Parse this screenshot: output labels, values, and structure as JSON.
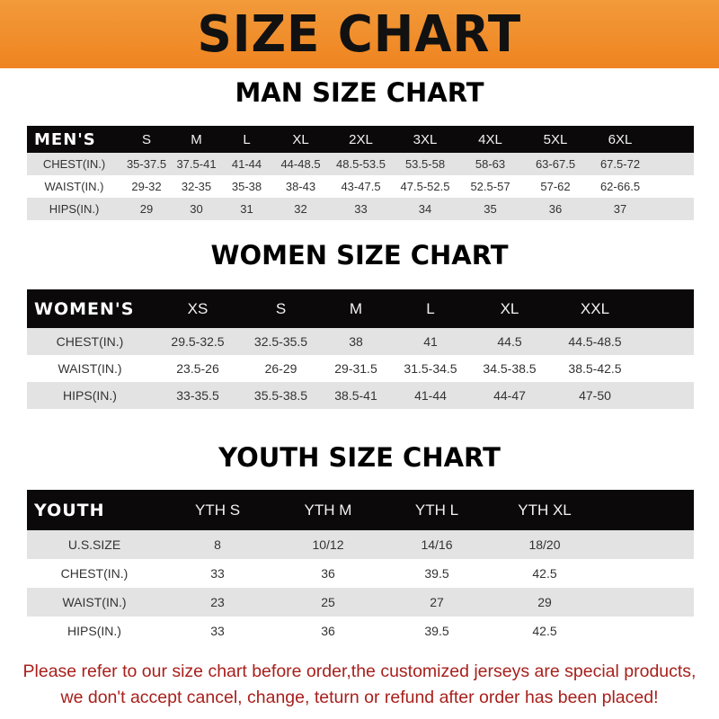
{
  "banner_title": "SIZE CHART",
  "men": {
    "title": "MAN SIZE CHART",
    "header": [
      "MEN'S",
      "S",
      "M",
      "L",
      "XL",
      "2XL",
      "3XL",
      "4XL",
      "5XL",
      "6XL"
    ],
    "rows": [
      [
        "CHEST(IN.)",
        "35-37.5",
        "37.5-41",
        "41-44",
        "44-48.5",
        "48.5-53.5",
        "53.5-58",
        "58-63",
        "63-67.5",
        "67.5-72"
      ],
      [
        "WAIST(IN.)",
        "29-32",
        "32-35",
        "35-38",
        "38-43",
        "43-47.5",
        "47.5-52.5",
        "52.5-57",
        "57-62",
        "62-66.5"
      ],
      [
        "HIPS(IN.)",
        "29",
        "30",
        "31",
        "32",
        "33",
        "34",
        "35",
        "36",
        "37"
      ]
    ]
  },
  "women": {
    "title": "WOMEN SIZE CHART",
    "header": [
      "WOMEN'S",
      "XS",
      "S",
      "M",
      "L",
      "XL",
      "XXL"
    ],
    "rows": [
      [
        "CHEST(IN.)",
        "29.5-32.5",
        "32.5-35.5",
        "38",
        "41",
        "44.5",
        "44.5-48.5"
      ],
      [
        "WAIST(IN.)",
        "23.5-26",
        "26-29",
        "29-31.5",
        "31.5-34.5",
        "34.5-38.5",
        "38.5-42.5"
      ],
      [
        "HIPS(IN.)",
        "33-35.5",
        "35.5-38.5",
        "38.5-41",
        "41-44",
        "44-47",
        "47-50"
      ]
    ]
  },
  "youth": {
    "title": "YOUTH SIZE CHART",
    "header": [
      "YOUTH",
      "YTH S",
      "YTH M",
      "YTH L",
      "YTH XL"
    ],
    "rows": [
      [
        "U.S.SIZE",
        "8",
        "10/12",
        "14/16",
        "18/20"
      ],
      [
        "CHEST(IN.)",
        "33",
        "36",
        "39.5",
        "42.5"
      ],
      [
        "WAIST(IN.)",
        "23",
        "25",
        "27",
        "29"
      ],
      [
        "HIPS(IN.)",
        "33",
        "36",
        "39.5",
        "42.5"
      ]
    ]
  },
  "notice": {
    "line1": "Please refer to our size chart before order,the customized jerseys are special products,",
    "line2": "we don't accept cancel, change, teturn or refund after order has been placed!"
  },
  "colors": {
    "banner": "#ee8420",
    "header_bg": "#0b0909",
    "row_alt": "#e3e3e3",
    "notice": "#a8201c"
  }
}
